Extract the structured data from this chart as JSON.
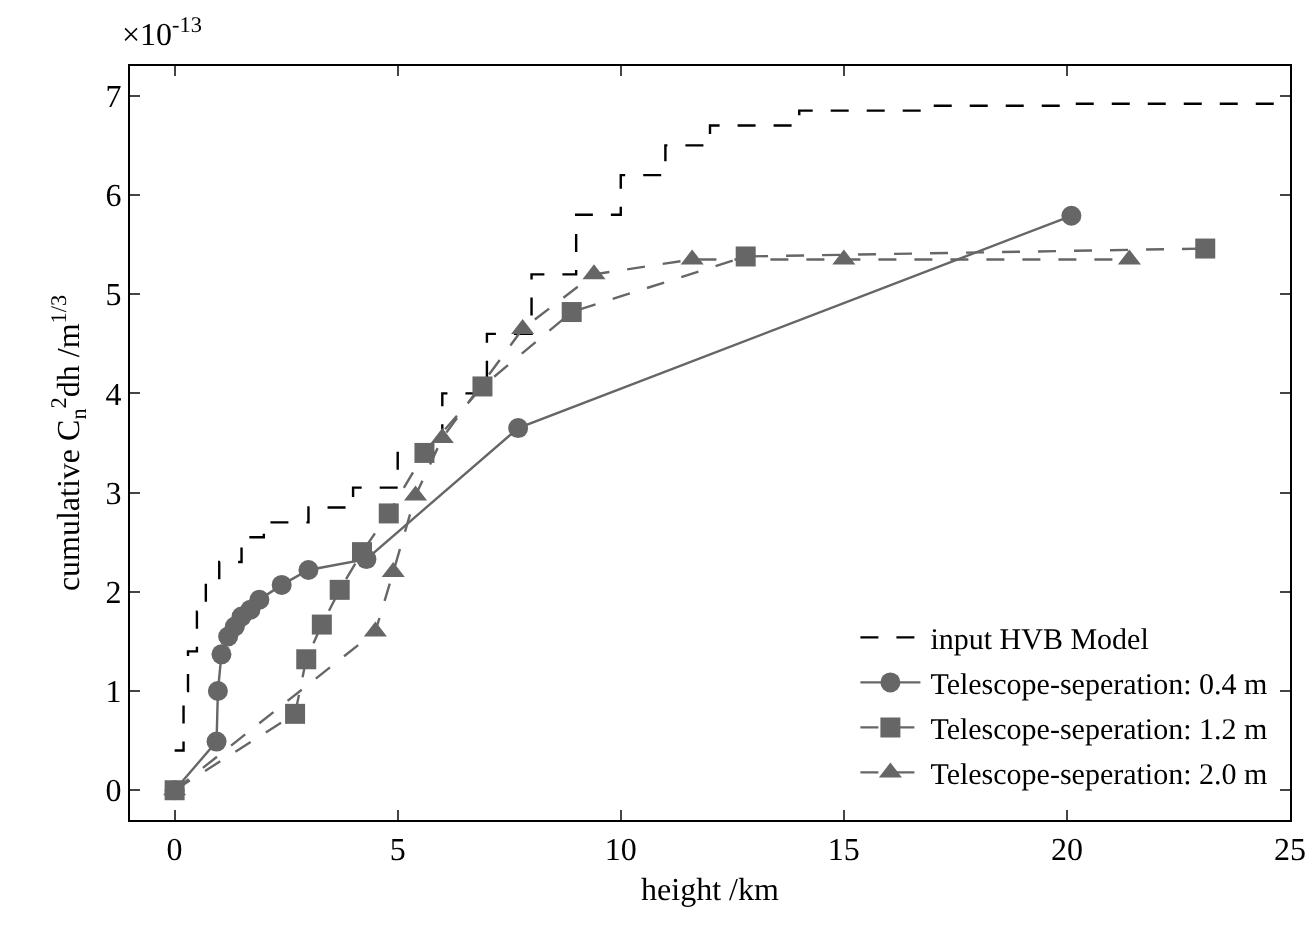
{
  "chart_data": {
    "type": "line",
    "xlabel": "height /km",
    "ylabel": "cumulative C$_{n}$$^{2}$dh /m$^{1/3}$",
    "annotations": [
      "×10$^{-13}$"
    ],
    "xlim": [
      -1,
      25
    ],
    "xticks": [
      0,
      5,
      10,
      15,
      20,
      25
    ],
    "ylim": [
      -0.3,
      7.3
    ],
    "yticks": [
      0,
      1,
      2,
      3,
      4,
      5,
      6,
      7
    ],
    "grid": false,
    "legend": "bottom right",
    "series": [
      {
        "name": "input HVB Model",
        "type": "step",
        "color": "#000000",
        "line_style": "dashed",
        "marker": "none",
        "x": [
          0,
          0.2,
          0.3,
          0.5,
          0.7,
          1,
          1.5,
          2,
          3,
          4,
          5,
          6,
          7,
          8,
          9,
          10,
          11,
          12,
          14,
          17,
          20,
          25
        ],
        "values": [
          0.4,
          1,
          1.4,
          1.8,
          2.1,
          2.3,
          2.55,
          2.7,
          2.85,
          3.05,
          3.4,
          4.0,
          4.6,
          5.2,
          5.8,
          6.2,
          6.5,
          6.7,
          6.85,
          6.9,
          6.92,
          6.92
        ]
      },
      {
        "name": "Telescope-seperation: 0.4 m",
        "color": "#666666",
        "line_style": "solid",
        "marker": "circle",
        "x": [
          0,
          0.94,
          0.97,
          1.05,
          1.2,
          1.35,
          1.5,
          1.7,
          1.9,
          2.4,
          3.0,
          4.3,
          7.7,
          20.1
        ],
        "values": [
          0,
          0.49,
          1.0,
          1.37,
          1.55,
          1.65,
          1.75,
          1.82,
          1.92,
          2.07,
          2.22,
          2.33,
          3.65,
          5.79
        ]
      },
      {
        "name": "Telescope-seperation: 1.2 m",
        "color": "#666666",
        "line_style": "dashed",
        "marker": "square",
        "x": [
          0,
          2.7,
          2.95,
          3.3,
          3.7,
          4.2,
          4.8,
          5.6,
          6.9,
          8.9,
          12.8,
          23.1
        ],
        "values": [
          0,
          0.77,
          1.32,
          1.67,
          2.02,
          2.4,
          2.79,
          3.4,
          4.07,
          4.82,
          5.38,
          5.46
        ]
      },
      {
        "name": "Telescope-seperation: 2.0 m",
        "color": "#666666",
        "line_style": "dashed",
        "marker": "triangle",
        "x": [
          0,
          4.5,
          4.9,
          5.4,
          6.0,
          7.8,
          9.4,
          11.6,
          15.0,
          21.4
        ],
        "values": [
          0,
          1.6,
          2.2,
          2.97,
          3.55,
          4.65,
          5.2,
          5.35,
          5.35,
          5.35
        ]
      }
    ]
  }
}
